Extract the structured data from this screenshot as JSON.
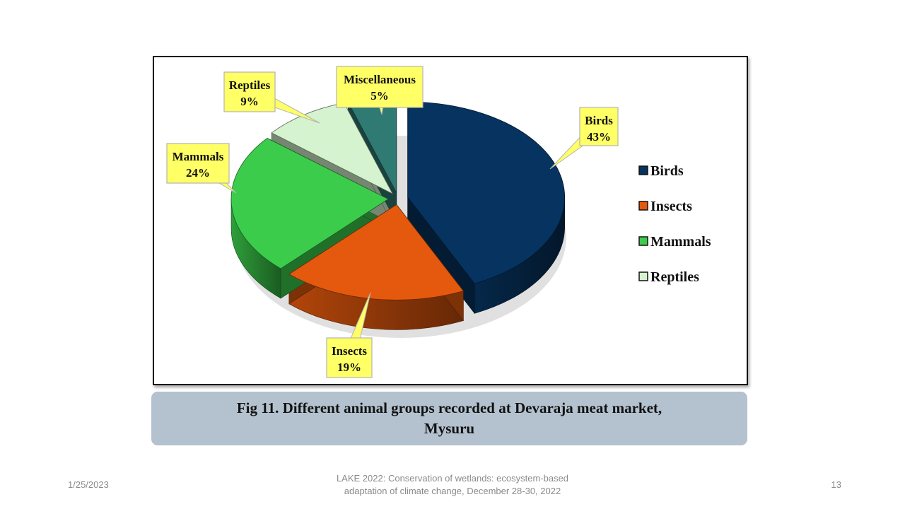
{
  "chart_data": {
    "type": "pie",
    "categories": [
      "Birds",
      "Insects",
      "Mammals",
      "Reptiles",
      "Miscellaneous"
    ],
    "values": [
      43,
      19,
      24,
      9,
      5
    ],
    "value_labels": [
      "43%",
      "19%",
      "24%",
      "9%",
      "5%"
    ],
    "colors": [
      "#06335f",
      "#e4590d",
      "#3ccc4c",
      "#d4f3ce",
      "#2f7a72"
    ],
    "legend": [
      "Birds",
      "Insects",
      "Mammals",
      "Reptiles"
    ],
    "legend_placement": "right",
    "style": "3d-exploded"
  },
  "caption": {
    "line1": "Fig 11. Different animal groups recorded at Devaraja meat market,",
    "line2": "Mysuru"
  },
  "footer": {
    "date": "1/25/2023",
    "center_line1": "LAKE 2022: Conservation of wetlands: ecosystem-based",
    "center_line2": "adaptation of climate change, December 28-30, 2022",
    "page": "13"
  }
}
